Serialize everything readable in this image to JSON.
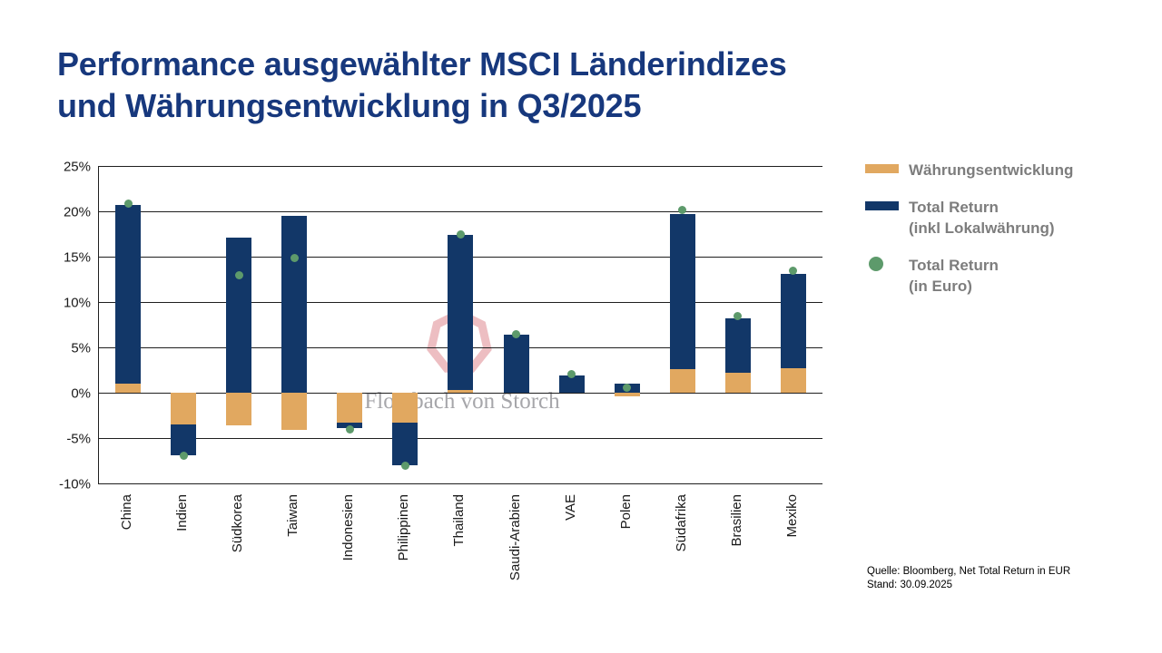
{
  "title": {
    "line1": "Performance ausgewählter MSCI Länderindizes",
    "line2": "und Währungsentwicklung in Q3/2025"
  },
  "watermark": {
    "text": "Flossbach von Storch"
  },
  "legend": {
    "items": [
      {
        "label": "Währungsentwicklung",
        "label2": ""
      },
      {
        "label": "Total Return",
        "label2": "(inkl Lokalwährung)"
      },
      {
        "label": "Total Return",
        "label2": "(in Euro)"
      }
    ]
  },
  "source": {
    "line1": "Quelle: Bloomberg, Net Total Return in EUR",
    "line2": "Stand: 30.09.2025"
  },
  "colors": {
    "title": "#17387d",
    "currency_bar": "#e1a860",
    "total_return_bar": "#123768",
    "euro_dot": "#5d9a6b",
    "legend_text": "#7d7d7d",
    "axis_text": "#1a1a1a",
    "watermark_pink": "#edbec2"
  },
  "chart_data": {
    "type": "bar",
    "title": "Performance ausgewählter MSCI Länderindizes und Währungsentwicklung in Q3/2025",
    "categories": [
      "China",
      "Indien",
      "Südkorea",
      "Taiwan",
      "Indonesien",
      "Philippinen",
      "Thailand",
      "Saudi-Arabien",
      "VAE",
      "Polen",
      "Südafrika",
      "Brasilien",
      "Mexiko"
    ],
    "series": [
      {
        "name": "Währungsentwicklung",
        "render": "stacked-bar",
        "color": "#e1a860",
        "values": [
          1.0,
          -3.5,
          -3.6,
          -4.1,
          -3.3,
          -3.3,
          0.3,
          0.0,
          0.0,
          -0.4,
          2.6,
          2.2,
          2.7
        ]
      },
      {
        "name": "Total Return (inkl Lokalwährung)",
        "render": "stacked-bar",
        "color": "#123768",
        "values": [
          19.7,
          -3.4,
          17.1,
          19.5,
          -0.6,
          -4.7,
          17.1,
          6.4,
          1.9,
          1.0,
          17.1,
          6.0,
          10.4
        ]
      },
      {
        "name": "Total Return (in Euro)",
        "render": "point",
        "color": "#5d9a6b",
        "values": [
          20.9,
          -6.9,
          13.0,
          14.9,
          -4.0,
          -8.0,
          17.5,
          6.5,
          2.1,
          0.6,
          20.2,
          8.5,
          13.5
        ]
      }
    ],
    "ylabel": "",
    "xlabel": "",
    "ylim": [
      -10,
      25
    ],
    "ytick_step": 5,
    "ytick_labels": [
      "25%",
      "20%",
      "15%",
      "10%",
      "5%",
      "0%",
      "-5%",
      "-10%"
    ],
    "grid": true,
    "legend_position": "right"
  }
}
